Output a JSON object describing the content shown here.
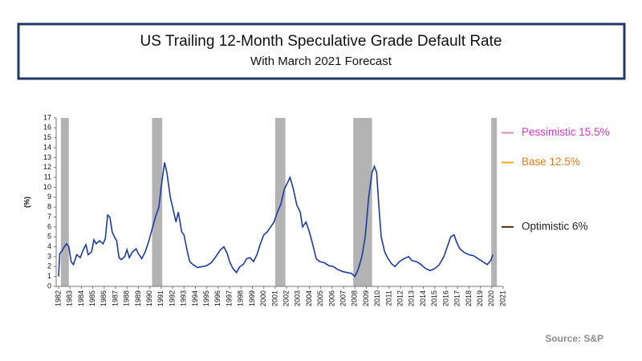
{
  "chart_data": {
    "type": "line",
    "title": "US Trailing 12-Month Speculative Grade Default Rate",
    "subtitle": "With March 2021 Forecast",
    "y_label": "(%)",
    "source": "Source: S&P",
    "xlim": [
      1982,
      2021
    ],
    "xticks": [
      1982,
      1983,
      1984,
      1985,
      1986,
      1987,
      1988,
      1989,
      1990,
      1991,
      1992,
      1993,
      1994,
      1995,
      1996,
      1997,
      1998,
      1999,
      2000,
      2001,
      2002,
      2003,
      2004,
      2005,
      2006,
      2007,
      2008,
      2009,
      2010,
      2011,
      2012,
      2013,
      2014,
      2015,
      2016,
      2017,
      2018,
      2019,
      2020,
      2021
    ],
    "ylim": [
      0,
      17
    ],
    "yticks": [
      0,
      1,
      2,
      3,
      4,
      5,
      6,
      7,
      8,
      9,
      10,
      11,
      12,
      13,
      14,
      15,
      16,
      17
    ],
    "shaded_periods": [
      [
        1982.2,
        1982.9
      ],
      [
        1990.2,
        1991.1
      ],
      [
        2001.0,
        2001.9
      ],
      [
        2007.85,
        2009.5
      ],
      [
        2019.95,
        2020.45
      ]
    ],
    "shade_color": "#b3b3b3",
    "series": [
      {
        "color": "#1f3a9e",
        "x": [
          1982.0,
          1982.1,
          1982.3,
          1982.5,
          1982.7,
          1982.9,
          1983.1,
          1983.3,
          1983.6,
          1983.9,
          1984.2,
          1984.4,
          1984.6,
          1984.9,
          1985.1,
          1985.3,
          1985.6,
          1985.9,
          1986.1,
          1986.3,
          1986.5,
          1986.7,
          1986.9,
          1987.1,
          1987.3,
          1987.5,
          1987.8,
          1988.0,
          1988.2,
          1988.5,
          1988.8,
          1989.0,
          1989.3,
          1989.6,
          1989.9,
          1990.2,
          1990.5,
          1990.8,
          1991.0,
          1991.3,
          1991.5,
          1991.8,
          1992.0,
          1992.3,
          1992.5,
          1992.8,
          1993.0,
          1993.3,
          1993.5,
          1993.8,
          1994.2,
          1994.6,
          1995.0,
          1995.4,
          1995.8,
          1996.2,
          1996.5,
          1996.8,
          1997.0,
          1997.3,
          1997.6,
          1997.9,
          1998.2,
          1998.5,
          1998.8,
          1999.1,
          1999.4,
          1999.7,
          2000.0,
          2000.3,
          2000.6,
          2000.9,
          2001.2,
          2001.5,
          2001.8,
          2002.1,
          2002.3,
          2002.6,
          2002.9,
          2003.2,
          2003.4,
          2003.7,
          2004.0,
          2004.3,
          2004.6,
          2004.9,
          2005.3,
          2005.7,
          2006.1,
          2006.5,
          2006.9,
          2007.3,
          2007.7,
          2008.0,
          2008.3,
          2008.6,
          2008.9,
          2009.2,
          2009.5,
          2009.7,
          2009.9,
          2010.1,
          2010.3,
          2010.6,
          2010.9,
          2011.2,
          2011.5,
          2011.9,
          2012.3,
          2012.7,
          2013.0,
          2013.4,
          2013.8,
          2014.2,
          2014.6,
          2015.0,
          2015.4,
          2015.8,
          2016.1,
          2016.4,
          2016.7,
          2016.9,
          2017.2,
          2017.6,
          2018.0,
          2018.4,
          2018.8,
          2019.2,
          2019.6,
          2019.9,
          2020.1
        ],
        "values": [
          1.0,
          3.3,
          3.6,
          4.0,
          4.3,
          4.0,
          2.5,
          2.2,
          3.2,
          2.9,
          3.8,
          4.2,
          3.2,
          3.5,
          4.7,
          4.3,
          4.6,
          4.3,
          4.8,
          7.2,
          7.0,
          5.5,
          5.0,
          4.6,
          2.9,
          2.7,
          3.0,
          3.7,
          2.9,
          3.5,
          3.8,
          3.3,
          2.8,
          3.5,
          4.5,
          5.8,
          7.0,
          8.0,
          10.0,
          12.5,
          11.5,
          9.0,
          8.0,
          6.5,
          7.5,
          5.5,
          5.2,
          3.5,
          2.5,
          2.2,
          1.9,
          2.0,
          2.1,
          2.4,
          3.0,
          3.7,
          4.0,
          3.3,
          2.5,
          1.8,
          1.4,
          2.0,
          2.2,
          2.8,
          2.9,
          2.5,
          3.2,
          4.3,
          5.2,
          5.5,
          6.0,
          6.5,
          7.5,
          8.3,
          9.8,
          10.5,
          11.0,
          9.8,
          8.2,
          7.5,
          6.0,
          6.5,
          5.5,
          4.2,
          2.8,
          2.5,
          2.4,
          2.1,
          2.0,
          1.7,
          1.5,
          1.4,
          1.3,
          1.0,
          1.8,
          3.0,
          5.0,
          9.0,
          11.5,
          12.1,
          11.5,
          8.0,
          5.0,
          3.5,
          2.8,
          2.3,
          2.0,
          2.5,
          2.8,
          3.0,
          2.6,
          2.5,
          2.2,
          1.8,
          1.6,
          1.8,
          2.2,
          3.0,
          4.0,
          5.0,
          5.2,
          4.5,
          3.8,
          3.4,
          3.2,
          3.1,
          2.8,
          2.5,
          2.2,
          2.6,
          3.2
        ]
      }
    ],
    "forecasts": [
      {
        "label": "Pessimistic 15.5%",
        "value": 15.5,
        "color": "#d98cb8",
        "label_color": "#d633c4"
      },
      {
        "label": "Base 12.5%",
        "value": 12.5,
        "color": "#f5a623",
        "label_color": "#e07a1f"
      },
      {
        "label": "Optimistic 6%",
        "value": 6,
        "color": "#5a2a0a",
        "label_color": "#222222"
      }
    ]
  }
}
